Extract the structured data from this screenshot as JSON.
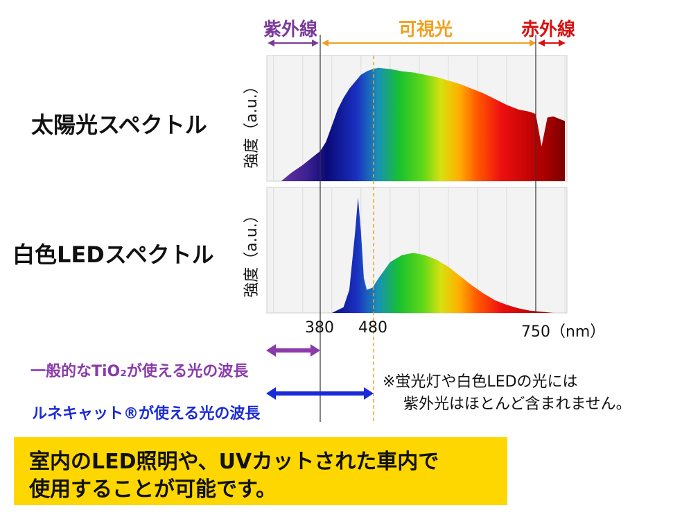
{
  "bands": {
    "uv": {
      "label": "紫外線",
      "color": "#7a3a9a"
    },
    "visible": {
      "label": "可視光",
      "color": "#f0a020"
    },
    "ir": {
      "label": "赤外線",
      "color": "#d81010"
    }
  },
  "rows": {
    "sun": {
      "label": "太陽光スペクトル",
      "ylabel": "強度（a.u.）"
    },
    "led": {
      "label": "白色LEDスペクトル",
      "ylabel": "強度（a.u.）"
    }
  },
  "ticks": {
    "t380": "380",
    "t480": "480",
    "t750": "750（nm）"
  },
  "arrows": {
    "tio2": {
      "text": "一般的なTiO₂が使える光の波長",
      "color": "#8a3aaa"
    },
    "lunekat": {
      "text": "ルネキャット®が使える光の波長",
      "color": "#1a2ad8"
    }
  },
  "note": {
    "line1": "※蛍光灯や白色LEDの光には",
    "line2": "紫外光はほとんど含まれません。"
  },
  "banner": {
    "line1": "室内のLED照明や、UVカットされた車内で",
    "line2": "使用することが可能です。"
  },
  "chart_data": [
    {
      "type": "area",
      "title": "太陽光スペクトル",
      "ylabel": "強度（a.u.）",
      "xunit": "nm",
      "x": [
        313,
        330,
        350,
        370,
        380,
        390,
        400,
        410,
        420,
        430,
        440,
        450,
        460,
        470,
        480,
        500,
        520,
        540,
        560,
        580,
        600,
        620,
        640,
        660,
        680,
        700,
        720,
        740,
        750,
        760,
        770,
        780,
        800
      ],
      "y": [
        0.0,
        0.07,
        0.14,
        0.22,
        0.26,
        0.34,
        0.48,
        0.62,
        0.72,
        0.8,
        0.86,
        0.92,
        0.95,
        0.97,
        0.98,
        0.97,
        0.95,
        0.94,
        0.92,
        0.9,
        0.87,
        0.84,
        0.8,
        0.76,
        0.71,
        0.66,
        0.62,
        0.6,
        0.58,
        0.3,
        0.55,
        0.56,
        0.52
      ]
    },
    {
      "type": "area",
      "title": "白色LEDスペクトル",
      "ylabel": "強度（a.u.）",
      "xunit": "nm",
      "x": [
        400,
        420,
        430,
        440,
        445,
        450,
        455,
        460,
        470,
        480,
        490,
        500,
        520,
        540,
        560,
        580,
        600,
        620,
        640,
        660,
        680,
        700,
        720,
        740,
        760,
        780
      ],
      "y": [
        0.0,
        0.05,
        0.2,
        0.7,
        1.0,
        0.7,
        0.3,
        0.2,
        0.22,
        0.3,
        0.37,
        0.44,
        0.5,
        0.52,
        0.5,
        0.46,
        0.4,
        0.32,
        0.24,
        0.17,
        0.11,
        0.07,
        0.04,
        0.02,
        0.01,
        0.0
      ]
    }
  ]
}
